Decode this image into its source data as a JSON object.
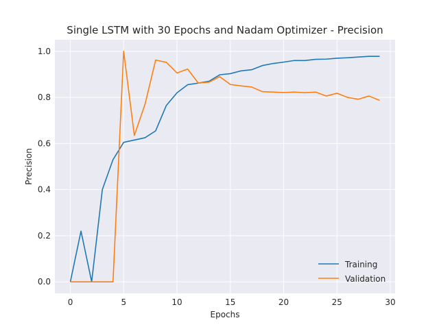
{
  "chart_data": {
    "type": "line",
    "title": "Single LSTM with 30 Epochs and Nadam Optimizer - Precision",
    "xlabel": "Epochs",
    "ylabel": "Precision",
    "xlim": [
      -1.45,
      30.45
    ],
    "ylim": [
      -0.05,
      1.05
    ],
    "xticks": [
      0,
      5,
      10,
      15,
      20,
      25,
      30
    ],
    "yticks": [
      0.0,
      0.2,
      0.4,
      0.6,
      0.8,
      1.0
    ],
    "xtick_labels": [
      "0",
      "5",
      "10",
      "15",
      "20",
      "25",
      "30"
    ],
    "ytick_labels": [
      "0.0",
      "0.2",
      "0.4",
      "0.6",
      "0.8",
      "1.0"
    ],
    "grid": true,
    "legend_position": "lower-right",
    "x": [
      0,
      1,
      2,
      3,
      4,
      5,
      6,
      7,
      8,
      9,
      10,
      11,
      12,
      13,
      14,
      15,
      16,
      17,
      18,
      19,
      20,
      21,
      22,
      23,
      24,
      25,
      26,
      27,
      28,
      29
    ],
    "series": [
      {
        "name": "Training",
        "color": "#1f77b4",
        "values": [
          0.0,
          0.22,
          0.0,
          0.4,
          0.53,
          0.605,
          0.615,
          0.625,
          0.655,
          0.765,
          0.82,
          0.855,
          0.862,
          0.87,
          0.898,
          0.903,
          0.915,
          0.92,
          0.938,
          0.947,
          0.953,
          0.96,
          0.96,
          0.965,
          0.966,
          0.97,
          0.972,
          0.975,
          0.978,
          0.978
        ]
      },
      {
        "name": "Validation",
        "color": "#ff7f0e",
        "values": [
          0.0,
          0.0,
          0.0,
          0.0,
          0.0,
          1.0,
          0.635,
          0.77,
          0.962,
          0.952,
          0.906,
          0.923,
          0.862,
          0.866,
          0.89,
          0.856,
          0.85,
          0.845,
          0.825,
          0.823,
          0.821,
          0.823,
          0.82,
          0.823,
          0.806,
          0.818,
          0.8,
          0.792,
          0.806,
          0.787
        ]
      }
    ]
  }
}
